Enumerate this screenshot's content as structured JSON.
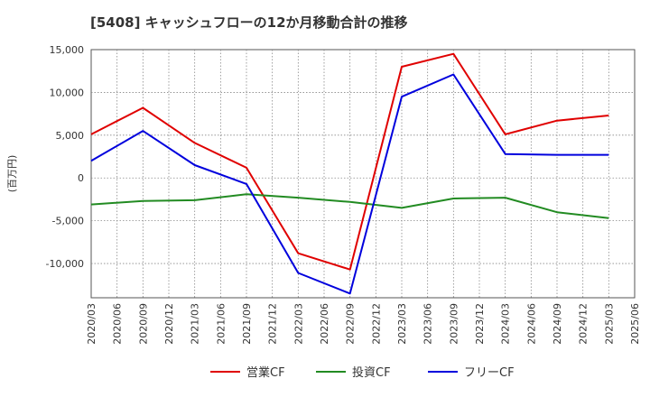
{
  "chart_data": {
    "type": "line",
    "title": "[5408]  キャッシュフローの12か月移動合計の推移",
    "ylabel": "(百万円)",
    "xlabel": "",
    "ylim": [
      -14000,
      15000
    ],
    "yticks": [
      15000,
      10000,
      5000,
      0,
      -5000,
      -10000
    ],
    "ytick_labels": [
      "15,000",
      "10,000",
      "5,000",
      "0",
      "-5,000",
      "-10,000"
    ],
    "x_tick_labels": [
      "2020/03",
      "2020/06",
      "2020/09",
      "2020/12",
      "2021/03",
      "2021/06",
      "2021/09",
      "2021/12",
      "2022/03",
      "2022/06",
      "2022/09",
      "2022/12",
      "2023/03",
      "2023/06",
      "2023/09",
      "2023/12",
      "2024/03",
      "2024/06",
      "2024/09",
      "2024/12",
      "2025/03",
      "2025/06"
    ],
    "grid": true,
    "legend_position": "bottom",
    "series": [
      {
        "name": "営業CF",
        "color": "#e00000",
        "points": [
          [
            "2020/03",
            5100
          ],
          [
            "2020/09",
            8200
          ],
          [
            "2021/03",
            4100
          ],
          [
            "2021/09",
            1200
          ],
          [
            "2022/03",
            -8800
          ],
          [
            "2022/09",
            -10700
          ],
          [
            "2023/03",
            13000
          ],
          [
            "2023/09",
            14500
          ],
          [
            "2024/03",
            5100
          ],
          [
            "2024/09",
            6700
          ],
          [
            "2025/03",
            7300
          ]
        ]
      },
      {
        "name": "投資CF",
        "color": "#228b22",
        "points": [
          [
            "2020/03",
            -3100
          ],
          [
            "2020/09",
            -2700
          ],
          [
            "2021/03",
            -2600
          ],
          [
            "2021/09",
            -1900
          ],
          [
            "2022/03",
            -2300
          ],
          [
            "2022/09",
            -2800
          ],
          [
            "2023/03",
            -3500
          ],
          [
            "2023/09",
            -2400
          ],
          [
            "2024/03",
            -2300
          ],
          [
            "2024/09",
            -4000
          ],
          [
            "2025/03",
            -4700
          ]
        ]
      },
      {
        "name": "フリーCF",
        "color": "#0000dd",
        "points": [
          [
            "2020/03",
            2000
          ],
          [
            "2020/09",
            5500
          ],
          [
            "2021/03",
            1500
          ],
          [
            "2021/09",
            -700
          ],
          [
            "2022/03",
            -11100
          ],
          [
            "2022/09",
            -13500
          ],
          [
            "2023/03",
            9500
          ],
          [
            "2023/09",
            12100
          ],
          [
            "2024/03",
            2800
          ],
          [
            "2024/09",
            2700
          ],
          [
            "2025/03",
            2700
          ]
        ]
      }
    ]
  }
}
